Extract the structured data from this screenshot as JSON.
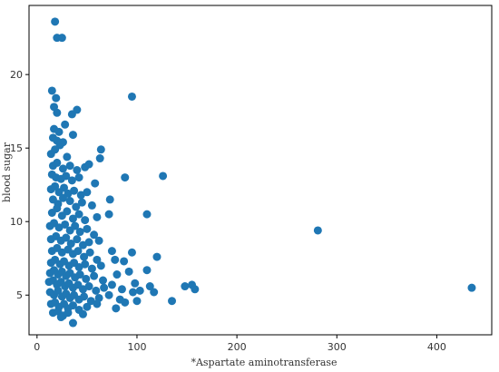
{
  "chart_data": {
    "type": "scatter",
    "title": "",
    "xlabel": "*Aspartate aminotransferase",
    "ylabel": "blood sugar",
    "xlim": [
      -8,
      455
    ],
    "ylim": [
      2.3,
      24.7
    ],
    "xticks": [
      0,
      100,
      200,
      300,
      400
    ],
    "yticks": [
      5,
      10,
      15,
      20
    ],
    "grid": false,
    "legend": "none",
    "point_color": "#1f77b4",
    "series": [
      {
        "points": [
          [
            18,
            23.6
          ],
          [
            20,
            22.5
          ],
          [
            25,
            22.5
          ],
          [
            15,
            18.9
          ],
          [
            19,
            18.4
          ],
          [
            95,
            18.5
          ],
          [
            17,
            17.8
          ],
          [
            20,
            17.4
          ],
          [
            35,
            17.3
          ],
          [
            40,
            17.6
          ],
          [
            28,
            16.6
          ],
          [
            17,
            16.3
          ],
          [
            22,
            16.1
          ],
          [
            36,
            15.9
          ],
          [
            16,
            15.7
          ],
          [
            20,
            15.5
          ],
          [
            23,
            15.2
          ],
          [
            26,
            15.4
          ],
          [
            14,
            14.6
          ],
          [
            18,
            14.9
          ],
          [
            30,
            14.4
          ],
          [
            64,
            14.9
          ],
          [
            63,
            14.3
          ],
          [
            16,
            13.8
          ],
          [
            20,
            14.0
          ],
          [
            26,
            13.6
          ],
          [
            33,
            13.8
          ],
          [
            40,
            13.5
          ],
          [
            48,
            13.7
          ],
          [
            52,
            13.9
          ],
          [
            15,
            13.2
          ],
          [
            19,
            13.0
          ],
          [
            24,
            12.9
          ],
          [
            29,
            13.1
          ],
          [
            35,
            12.8
          ],
          [
            42,
            13.0
          ],
          [
            58,
            12.6
          ],
          [
            88,
            13.0
          ],
          [
            126,
            13.1
          ],
          [
            14,
            12.2
          ],
          [
            18,
            12.4
          ],
          [
            22,
            12.0
          ],
          [
            27,
            12.3
          ],
          [
            31,
            11.9
          ],
          [
            37,
            12.1
          ],
          [
            44,
            11.8
          ],
          [
            50,
            12.0
          ],
          [
            16,
            11.5
          ],
          [
            21,
            11.2
          ],
          [
            26,
            11.6
          ],
          [
            33,
            11.4
          ],
          [
            39,
            11.0
          ],
          [
            45,
            11.3
          ],
          [
            55,
            11.1
          ],
          [
            73,
            11.5
          ],
          [
            15,
            10.6
          ],
          [
            20,
            10.9
          ],
          [
            25,
            10.4
          ],
          [
            30,
            10.7
          ],
          [
            36,
            10.2
          ],
          [
            42,
            10.5
          ],
          [
            48,
            10.1
          ],
          [
            60,
            10.3
          ],
          [
            72,
            10.5
          ],
          [
            110,
            10.5
          ],
          [
            13,
            9.7
          ],
          [
            17,
            9.9
          ],
          [
            22,
            9.6
          ],
          [
            28,
            9.8
          ],
          [
            33,
            9.4
          ],
          [
            38,
            9.7
          ],
          [
            43,
            9.3
          ],
          [
            50,
            9.5
          ],
          [
            57,
            9.1
          ],
          [
            14,
            8.8
          ],
          [
            19,
            9.0
          ],
          [
            24,
            8.7
          ],
          [
            29,
            8.9
          ],
          [
            34,
            8.5
          ],
          [
            40,
            8.8
          ],
          [
            46,
            8.4
          ],
          [
            52,
            8.6
          ],
          [
            62,
            8.7
          ],
          [
            15,
            8.0
          ],
          [
            20,
            8.2
          ],
          [
            25,
            7.9
          ],
          [
            31,
            8.1
          ],
          [
            36,
            7.8
          ],
          [
            41,
            8.0
          ],
          [
            47,
            7.6
          ],
          [
            53,
            7.9
          ],
          [
            60,
            7.4
          ],
          [
            75,
            8.0
          ],
          [
            95,
            7.9
          ],
          [
            14,
            7.2
          ],
          [
            18,
            7.4
          ],
          [
            23,
            7.1
          ],
          [
            27,
            7.3
          ],
          [
            32,
            7.0
          ],
          [
            37,
            7.2
          ],
          [
            42,
            6.9
          ],
          [
            48,
            7.1
          ],
          [
            55,
            6.8
          ],
          [
            64,
            7.0
          ],
          [
            78,
            7.4
          ],
          [
            87,
            7.3
          ],
          [
            120,
            7.6
          ],
          [
            13,
            6.5
          ],
          [
            17,
            6.7
          ],
          [
            21,
            6.4
          ],
          [
            25,
            6.6
          ],
          [
            29,
            6.3
          ],
          [
            33,
            6.5
          ],
          [
            38,
            6.2
          ],
          [
            43,
            6.4
          ],
          [
            49,
            6.1
          ],
          [
            57,
            6.3
          ],
          [
            66,
            6.0
          ],
          [
            80,
            6.4
          ],
          [
            92,
            6.6
          ],
          [
            110,
            6.7
          ],
          [
            12,
            5.9
          ],
          [
            16,
            6.0
          ],
          [
            20,
            5.7
          ],
          [
            24,
            5.9
          ],
          [
            28,
            5.6
          ],
          [
            32,
            5.8
          ],
          [
            36,
            5.5
          ],
          [
            41,
            5.7
          ],
          [
            46,
            5.4
          ],
          [
            52,
            5.6
          ],
          [
            59,
            5.3
          ],
          [
            67,
            5.5
          ],
          [
            75,
            5.7
          ],
          [
            85,
            5.4
          ],
          [
            98,
            5.8
          ],
          [
            113,
            5.6
          ],
          [
            148,
            5.6
          ],
          [
            155,
            5.7
          ],
          [
            158,
            5.4
          ],
          [
            13,
            5.2
          ],
          [
            17,
            5.0
          ],
          [
            21,
            5.3
          ],
          [
            25,
            4.9
          ],
          [
            29,
            5.1
          ],
          [
            33,
            4.8
          ],
          [
            37,
            5.0
          ],
          [
            42,
            4.7
          ],
          [
            47,
            4.9
          ],
          [
            54,
            4.6
          ],
          [
            62,
            4.8
          ],
          [
            72,
            5.0
          ],
          [
            83,
            4.7
          ],
          [
            96,
            5.2
          ],
          [
            103,
            5.3
          ],
          [
            117,
            5.2
          ],
          [
            135,
            4.6
          ],
          [
            14,
            4.4
          ],
          [
            18,
            4.5
          ],
          [
            22,
            4.2
          ],
          [
            27,
            4.4
          ],
          [
            31,
            4.1
          ],
          [
            36,
            4.3
          ],
          [
            42,
            4.0
          ],
          [
            50,
            4.2
          ],
          [
            60,
            4.4
          ],
          [
            79,
            4.1
          ],
          [
            88,
            4.5
          ],
          [
            100,
            4.6
          ],
          [
            16,
            3.8
          ],
          [
            21,
            3.9
          ],
          [
            26,
            3.6
          ],
          [
            31,
            3.8
          ],
          [
            46,
            3.7
          ],
          [
            24,
            3.5
          ],
          [
            36,
            3.1
          ],
          [
            281,
            9.4
          ],
          [
            435,
            5.5
          ]
        ]
      }
    ]
  }
}
